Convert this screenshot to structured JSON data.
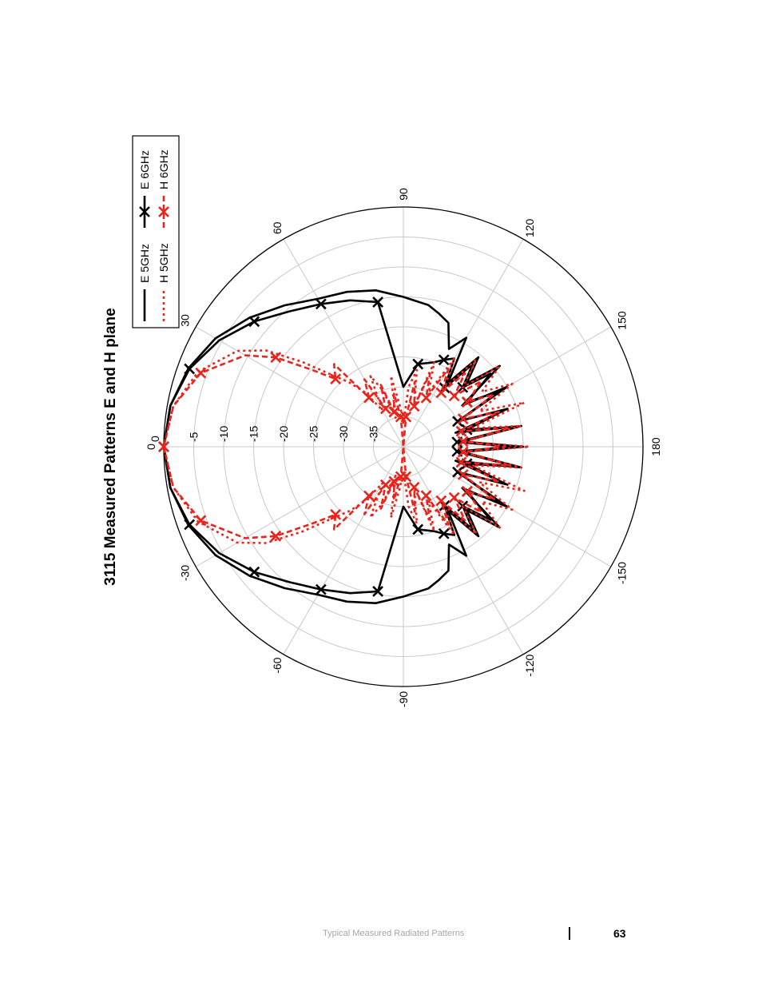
{
  "chart_data": {
    "type": "polar",
    "title": "3115 Measured Patterns E and H plane",
    "orientation": "rotated-90-ccw",
    "radial_axis": {
      "range": [
        -40,
        0
      ],
      "ticks": [
        0,
        -5,
        -10,
        -15,
        -20,
        -25,
        -30,
        -35
      ],
      "tick_labels": [
        "0",
        "-5",
        "-10",
        "-15",
        "-20",
        "-25",
        "-30",
        "-35"
      ]
    },
    "angular_axis": {
      "ticks": [
        0,
        30,
        60,
        90,
        120,
        150,
        180,
        -150,
        -120,
        -90,
        -60,
        -30
      ],
      "tick_labels": [
        "0",
        "30",
        "60",
        "90",
        "120",
        "150",
        "180",
        "-150",
        "-120",
        "-90",
        "-60",
        "-30"
      ]
    },
    "grid": true,
    "legend_position": "top-right",
    "series": [
      {
        "name": "E 5GHz",
        "color": "#000000",
        "style": "solid",
        "marker": "none",
        "angles": [
          0,
          10,
          20,
          30,
          40,
          50,
          60,
          70,
          80,
          90,
          100,
          105,
          110,
          115,
          120,
          125,
          130,
          135,
          140,
          145,
          150,
          155,
          160,
          165,
          170,
          175,
          180,
          185,
          190,
          195,
          200,
          205,
          210,
          215,
          220,
          225,
          230,
          235,
          240,
          245,
          250,
          255,
          260,
          270,
          280,
          290,
          300,
          310,
          320,
          330,
          340,
          350
        ],
        "values": [
          0,
          -0.5,
          -1.8,
          -3.8,
          -6.5,
          -9.2,
          -11.5,
          -12.5,
          -13.5,
          -15,
          -16,
          -17,
          -18,
          -22,
          -19,
          -27,
          -20.5,
          -25,
          -19,
          -28,
          -20,
          -30,
          -21.5,
          -31,
          -20,
          -30,
          -20,
          -30,
          -20,
          -31,
          -21.5,
          -30,
          -20,
          -28,
          -19,
          -25,
          -20.5,
          -27,
          -19,
          -22,
          -18,
          -17,
          -16,
          -15,
          -13.5,
          -12.5,
          -11.5,
          -9.2,
          -6.5,
          -3.8,
          -1.8,
          -0.5
        ]
      },
      {
        "name": "E 6GHz",
        "color": "#000000",
        "style": "solid",
        "marker": "x",
        "angles": [
          0,
          10,
          20,
          30,
          40,
          50,
          60,
          70,
          80,
          90,
          100,
          110,
          115,
          120,
          125,
          130,
          135,
          140,
          145,
          150,
          155,
          160,
          165,
          170,
          175,
          180,
          185,
          190,
          195,
          200,
          205,
          210,
          215,
          220,
          225,
          230,
          235,
          240,
          245,
          250,
          260,
          270,
          280,
          290,
          300,
          310,
          320,
          330,
          340,
          350
        ],
        "values": [
          0,
          -0.5,
          -2,
          -4.5,
          -7.5,
          -10.5,
          -12.5,
          -14,
          -15.5,
          -30,
          -26,
          -25,
          -24,
          -23,
          -28,
          -22,
          -26,
          -21,
          -27,
          -21.5,
          -30,
          -22,
          -29,
          -21,
          -31,
          -22,
          -31,
          -21,
          -29,
          -22,
          -30,
          -21.5,
          -27,
          -21,
          -26,
          -22,
          -28,
          -23,
          -24,
          -25,
          -26,
          -30,
          -15.5,
          -14,
          -12.5,
          -10.5,
          -7.5,
          -4.5,
          -2,
          -0.5
        ]
      },
      {
        "name": "H 5GHz",
        "color": "#e8251d",
        "style": "dotted",
        "marker": "none",
        "angles": [
          0,
          10,
          20,
          30,
          35,
          40,
          45,
          50,
          55,
          60,
          65,
          70,
          75,
          80,
          85,
          90,
          95,
          100,
          105,
          110,
          115,
          120,
          125,
          130,
          135,
          140,
          145,
          150,
          155,
          160,
          165,
          170,
          175,
          180,
          185,
          190,
          195,
          200,
          205,
          210,
          215,
          220,
          225,
          230,
          235,
          240,
          245,
          250,
          255,
          260,
          265,
          270,
          275,
          280,
          285,
          290,
          295,
          300,
          305,
          310,
          315,
          320,
          325,
          330,
          340,
          350
        ],
        "values": [
          0,
          -1,
          -3.5,
          -8,
          -12,
          -18,
          -23,
          -26,
          -29,
          -33,
          -27,
          -30,
          -35,
          -28,
          -33,
          -36,
          -30,
          -27,
          -33,
          -25,
          -30,
          -23,
          -28,
          -21,
          -26,
          -19,
          -24,
          -19,
          -26,
          -18.5,
          -28,
          -20,
          -30,
          -19,
          -30,
          -20,
          -28,
          -18.5,
          -26,
          -19,
          -24,
          -19,
          -26,
          -21,
          -28,
          -23,
          -30,
          -25,
          -33,
          -27,
          -30,
          -36,
          -33,
          -28,
          -35,
          -30,
          -27,
          -33,
          -29,
          -26,
          -23,
          -18,
          -12,
          -8,
          -3.5,
          -1
        ]
      },
      {
        "name": "H 6GHz",
        "color": "#e8251d",
        "style": "dashed",
        "marker": "x",
        "angles": [
          0,
          10,
          20,
          30,
          35,
          40,
          45,
          50,
          55,
          60,
          65,
          70,
          75,
          80,
          85,
          90,
          95,
          100,
          105,
          110,
          115,
          120,
          125,
          130,
          135,
          140,
          145,
          150,
          155,
          160,
          165,
          170,
          175,
          180,
          185,
          190,
          195,
          200,
          205,
          210,
          215,
          220,
          225,
          230,
          235,
          240,
          245,
          250,
          255,
          260,
          265,
          270,
          275,
          280,
          285,
          290,
          295,
          300,
          305,
          310,
          315,
          320,
          325,
          330,
          340,
          350
        ],
        "values": [
          0,
          -1,
          -4,
          -9.5,
          -14,
          -20,
          -24,
          -22,
          -30,
          -27,
          -33,
          -29,
          -34,
          -31,
          -35,
          -40,
          -35,
          -29,
          -33,
          -27,
          -31,
          -25,
          -29,
          -24,
          -28,
          -23,
          -27,
          -22.5,
          -29,
          -23,
          -30,
          -22,
          -30,
          -23,
          -30,
          -22,
          -30,
          -23,
          -29,
          -22.5,
          -27,
          -23,
          -28,
          -24,
          -29,
          -25,
          -31,
          -27,
          -33,
          -29,
          -35,
          -40,
          -35,
          -31,
          -34,
          -29,
          -33,
          -27,
          -30,
          -22,
          -24,
          -20,
          -14,
          -9.5,
          -4,
          -1
        ]
      }
    ]
  },
  "footer": {
    "section": "Typical Measured Radiated Patterns",
    "page": "63"
  }
}
